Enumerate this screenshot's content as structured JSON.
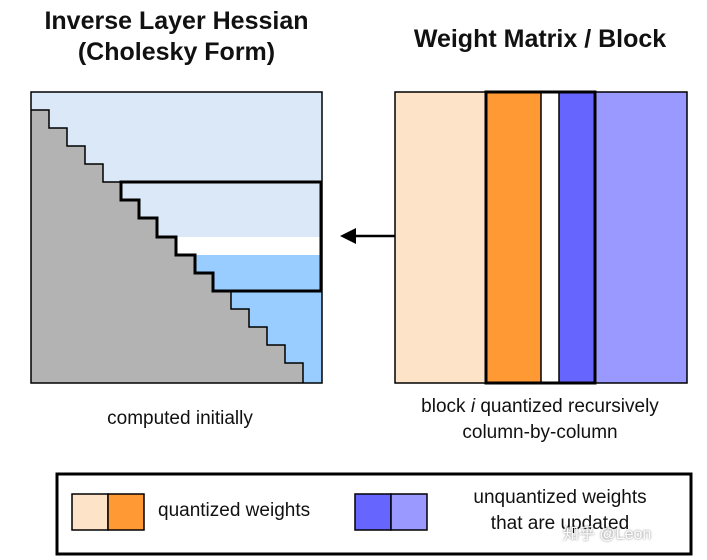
{
  "left_panel": {
    "title_line1": "Inverse Layer Hessian",
    "title_line2": "(Cholesky Form)",
    "caption": "computed initially"
  },
  "right_panel": {
    "title": "Weight Matrix / Block",
    "caption_prefix": "block ",
    "caption_italic": "i",
    "caption_suffix": " quantized recursively",
    "caption_line2": "column-by-column"
  },
  "legend": {
    "quantized_label": "quantized weights",
    "unquantized_label_line1": "unquantized weights",
    "unquantized_label_line2": "that are updated"
  },
  "watermark": "知乎 @Leon",
  "colors": {
    "light_blue": "#dbe8f8",
    "medium_blue": "#99ccff",
    "gray": "#b3b3b3",
    "peach": "#fde3c8",
    "orange": "#ff9933",
    "dark_purple": "#6666ff",
    "light_purple": "#9999ff"
  }
}
